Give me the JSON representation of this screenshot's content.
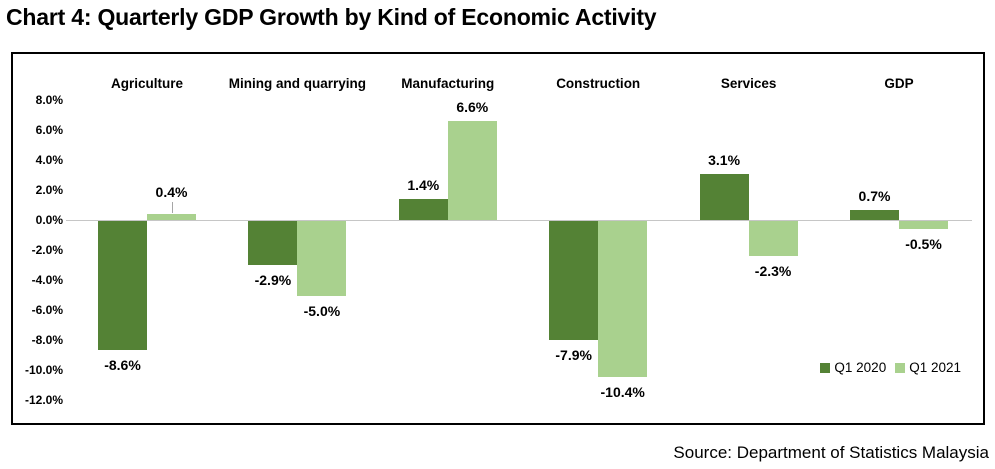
{
  "title": "Chart 4: Quarterly GDP Growth by Kind of Economic Activity",
  "source": "Source: Department of Statistics Malaysia",
  "colors": {
    "series_q1_2020": "#548235",
    "series_q1_2021": "#A9D18E",
    "zero_line": "#C6C6C6",
    "leader_line": "#A6A6A6",
    "border": "#000000",
    "text": "#000000"
  },
  "chart_data": {
    "type": "bar",
    "categories": [
      "Agriculture",
      "Mining and quarrying",
      "Manufacturing",
      "Construction",
      "Services",
      "GDP"
    ],
    "series": [
      {
        "name": "Q1 2020",
        "color": "#548235",
        "values": [
          -8.6,
          -2.9,
          1.4,
          -7.9,
          3.1,
          0.7
        ]
      },
      {
        "name": "Q1 2021",
        "color": "#A9D18E",
        "values": [
          0.4,
          -5.0,
          6.6,
          -10.4,
          -2.3,
          -0.5
        ]
      }
    ],
    "data_labels": [
      [
        "-8.6%",
        "-2.9%",
        "1.4%",
        "-7.9%",
        "3.1%",
        "0.7%"
      ],
      [
        "0.4%",
        "-5.0%",
        "6.6%",
        "-10.4%",
        "-2.3%",
        "-0.5%"
      ]
    ],
    "y_ticks": [
      "8.0%",
      "6.0%",
      "4.0%",
      "2.0%",
      "0.0%",
      "-2.0%",
      "-4.0%",
      "-6.0%",
      "-8.0%",
      "-10.0%",
      "-12.0%"
    ],
    "y_tick_values": [
      8,
      6,
      4,
      2,
      0,
      -2,
      -4,
      -6,
      -8,
      -10,
      -12
    ],
    "ylim": [
      -12,
      8
    ],
    "grid": "zero-line-only",
    "legend_position": "bottom-right-inside",
    "callouts": [
      {
        "series": 1,
        "category": 0
      }
    ]
  },
  "legend": {
    "items": [
      {
        "label": "Q1 2020",
        "color": "#548235"
      },
      {
        "label": "Q1 2021",
        "color": "#A9D18E"
      }
    ]
  }
}
